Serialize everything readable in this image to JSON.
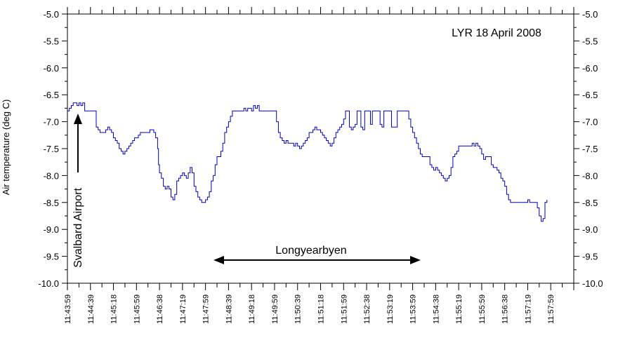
{
  "chart_data": {
    "type": "line",
    "title": "",
    "annotation_title": "LYR 18 April 2008",
    "ylabel": "Air temperature (deg C)",
    "xlabel": "",
    "ylim": [
      -10.0,
      -5.0
    ],
    "yticks": [
      -5.0,
      -5.5,
      -6.0,
      -6.5,
      -7.0,
      -7.5,
      -8.0,
      -8.5,
      -9.0,
      -9.5,
      -10.0
    ],
    "ytick_labels": [
      "-5.0",
      "-5.5",
      "-6.0",
      "-6.5",
      "-7.0",
      "-7.5",
      "-8.0",
      "-8.5",
      "-9.0",
      "-9.5",
      "-10.0"
    ],
    "xtick_labels": [
      "11:43:59",
      "11:44:39",
      "11:45:18",
      "11:45:59",
      "11:46:38",
      "11:47:19",
      "11:47:59",
      "11:48:39",
      "11:49:18",
      "11:49:59",
      "11:50:39",
      "11:51:18",
      "11:51:59",
      "11:52:38",
      "11:53:19",
      "11:53:59",
      "11:54:38",
      "11:55:19",
      "11:55:59",
      "11:56:38",
      "11:57:19",
      "11:57:59"
    ],
    "grid": false,
    "line_color": "#0000c0",
    "annotations": {
      "svalbard": "Svalbard Airport",
      "longyearbyen": "Longyearbyen"
    },
    "series": [
      {
        "values": [
          [
            0,
            -6.8
          ],
          [
            1,
            -6.75
          ],
          [
            2,
            -6.7
          ],
          [
            3,
            -6.65
          ],
          [
            5,
            -6.7
          ],
          [
            6,
            -6.65
          ],
          [
            7,
            -6.7
          ],
          [
            8,
            -6.65
          ],
          [
            9,
            -6.8
          ],
          [
            14,
            -6.8
          ],
          [
            15,
            -7.1
          ],
          [
            16,
            -7.15
          ],
          [
            17,
            -7.2
          ],
          [
            20,
            -7.15
          ],
          [
            21,
            -7.1
          ],
          [
            22,
            -7.15
          ],
          [
            23,
            -7.2
          ],
          [
            24,
            -7.3
          ],
          [
            25,
            -7.35
          ],
          [
            26,
            -7.4
          ],
          [
            27,
            -7.5
          ],
          [
            28,
            -7.55
          ],
          [
            29,
            -7.6
          ],
          [
            30,
            -7.55
          ],
          [
            31,
            -7.5
          ],
          [
            32,
            -7.45
          ],
          [
            33,
            -7.4
          ],
          [
            34,
            -7.35
          ],
          [
            35,
            -7.3
          ],
          [
            36,
            -7.3
          ],
          [
            37,
            -7.25
          ],
          [
            38,
            -7.2
          ],
          [
            39,
            -7.2
          ],
          [
            40,
            -7.2
          ],
          [
            42,
            -7.2
          ],
          [
            43,
            -7.15
          ],
          [
            45,
            -7.2
          ],
          [
            46,
            -7.3
          ],
          [
            47,
            -7.5
          ],
          [
            47.5,
            -7.8
          ],
          [
            48,
            -7.95
          ],
          [
            49,
            -8.05
          ],
          [
            50,
            -8.2
          ],
          [
            51,
            -8.25
          ],
          [
            52,
            -8.2
          ],
          [
            53,
            -8.25
          ],
          [
            54,
            -8.4
          ],
          [
            55,
            -8.45
          ],
          [
            56,
            -8.35
          ],
          [
            57,
            -8.1
          ],
          [
            58,
            -8.05
          ],
          [
            59,
            -8.0
          ],
          [
            60,
            -7.95
          ],
          [
            61,
            -8.0
          ],
          [
            62,
            -8.05
          ],
          [
            63,
            -7.95
          ],
          [
            64,
            -7.85
          ],
          [
            65,
            -7.95
          ],
          [
            66,
            -8.2
          ],
          [
            67,
            -8.3
          ],
          [
            68,
            -8.4
          ],
          [
            69,
            -8.45
          ],
          [
            70,
            -8.5
          ],
          [
            71,
            -8.5
          ],
          [
            72,
            -8.45
          ],
          [
            73,
            -8.4
          ],
          [
            74,
            -8.3
          ],
          [
            75,
            -8.1
          ],
          [
            76,
            -8.0
          ],
          [
            77,
            -7.8
          ],
          [
            78,
            -7.65
          ],
          [
            79,
            -7.65
          ],
          [
            80,
            -7.55
          ],
          [
            81,
            -7.4
          ],
          [
            82,
            -7.2
          ],
          [
            83,
            -7.1
          ],
          [
            84,
            -7.0
          ],
          [
            85,
            -6.9
          ],
          [
            86,
            -6.8
          ],
          [
            87,
            -6.8
          ],
          [
            91,
            -6.8
          ],
          [
            92,
            -6.75
          ],
          [
            93,
            -6.8
          ],
          [
            94,
            -6.75
          ],
          [
            96,
            -6.8
          ],
          [
            97,
            -6.7
          ],
          [
            98,
            -6.75
          ],
          [
            99,
            -6.7
          ],
          [
            100,
            -6.8
          ],
          [
            108,
            -6.8
          ],
          [
            109,
            -7.0
          ],
          [
            110,
            -7.2
          ],
          [
            111,
            -7.3
          ],
          [
            112,
            -7.35
          ],
          [
            113,
            -7.4
          ],
          [
            114,
            -7.35
          ],
          [
            115,
            -7.4
          ],
          [
            117,
            -7.4
          ],
          [
            118,
            -7.45
          ],
          [
            119,
            -7.4
          ],
          [
            120,
            -7.45
          ],
          [
            121,
            -7.5
          ],
          [
            122,
            -7.45
          ],
          [
            123,
            -7.4
          ],
          [
            124,
            -7.35
          ],
          [
            125,
            -7.3
          ],
          [
            126,
            -7.2
          ],
          [
            127,
            -7.2
          ],
          [
            128,
            -7.15
          ],
          [
            129,
            -7.1
          ],
          [
            130,
            -7.15
          ],
          [
            131,
            -7.15
          ],
          [
            132,
            -7.2
          ],
          [
            133,
            -7.25
          ],
          [
            134,
            -7.3
          ],
          [
            135,
            -7.35
          ],
          [
            136,
            -7.4
          ],
          [
            137,
            -7.45
          ],
          [
            138,
            -7.4
          ],
          [
            139,
            -7.3
          ],
          [
            140,
            -7.2
          ],
          [
            141,
            -7.15
          ],
          [
            142,
            -7.1
          ],
          [
            143,
            -7.05
          ],
          [
            144,
            -6.95
          ],
          [
            145,
            -6.8
          ],
          [
            146,
            -6.8
          ],
          [
            147,
            -7.1
          ],
          [
            148,
            -7.15
          ],
          [
            149,
            -7.1
          ],
          [
            150,
            -7.05
          ],
          [
            151,
            -6.8
          ],
          [
            152,
            -6.8
          ],
          [
            153,
            -7.1
          ],
          [
            154,
            -7.15
          ],
          [
            155,
            -6.8
          ],
          [
            157,
            -6.8
          ],
          [
            158,
            -7.05
          ],
          [
            159,
            -6.8
          ],
          [
            162,
            -6.8
          ],
          [
            163,
            -7.05
          ],
          [
            164,
            -7.1
          ],
          [
            165,
            -6.8
          ],
          [
            168,
            -6.8
          ],
          [
            169,
            -7.1
          ],
          [
            171,
            -7.1
          ],
          [
            172,
            -6.8
          ],
          [
            177,
            -6.8
          ],
          [
            178,
            -6.95
          ],
          [
            179,
            -7.1
          ],
          [
            180,
            -7.2
          ],
          [
            181,
            -7.3
          ],
          [
            182,
            -7.4
          ],
          [
            183,
            -7.5
          ],
          [
            184,
            -7.6
          ],
          [
            185,
            -7.65
          ],
          [
            188,
            -7.65
          ],
          [
            189,
            -7.8
          ],
          [
            190,
            -7.85
          ],
          [
            191,
            -7.9
          ],
          [
            192,
            -7.85
          ],
          [
            193,
            -7.9
          ],
          [
            194,
            -7.95
          ],
          [
            195,
            -8.0
          ],
          [
            196,
            -8.05
          ],
          [
            197,
            -8.1
          ],
          [
            198,
            -8.05
          ],
          [
            199,
            -8.0
          ],
          [
            200,
            -7.85
          ],
          [
            201,
            -7.65
          ],
          [
            202,
            -7.6
          ],
          [
            203,
            -7.55
          ],
          [
            204,
            -7.45
          ],
          [
            210,
            -7.45
          ],
          [
            211,
            -7.4
          ],
          [
            212,
            -7.45
          ],
          [
            213,
            -7.4
          ],
          [
            214,
            -7.45
          ],
          [
            215,
            -7.5
          ],
          [
            216,
            -7.6
          ],
          [
            217,
            -7.7
          ],
          [
            218,
            -7.65
          ],
          [
            220,
            -7.65
          ],
          [
            221,
            -7.8
          ],
          [
            222,
            -7.85
          ],
          [
            223,
            -7.85
          ],
          [
            224,
            -7.9
          ],
          [
            225,
            -7.95
          ],
          [
            226,
            -8.05
          ],
          [
            227,
            -8.1
          ],
          [
            228,
            -8.2
          ],
          [
            229,
            -8.35
          ],
          [
            230,
            -8.45
          ],
          [
            231,
            -8.5
          ],
          [
            239,
            -8.5
          ],
          [
            240,
            -8.45
          ],
          [
            241,
            -8.5
          ],
          [
            244,
            -8.5
          ],
          [
            245,
            -8.6
          ],
          [
            246,
            -8.75
          ],
          [
            247,
            -8.85
          ],
          [
            248,
            -8.8
          ],
          [
            249,
            -8.5
          ],
          [
            250,
            -8.45
          ]
        ]
      }
    ]
  }
}
